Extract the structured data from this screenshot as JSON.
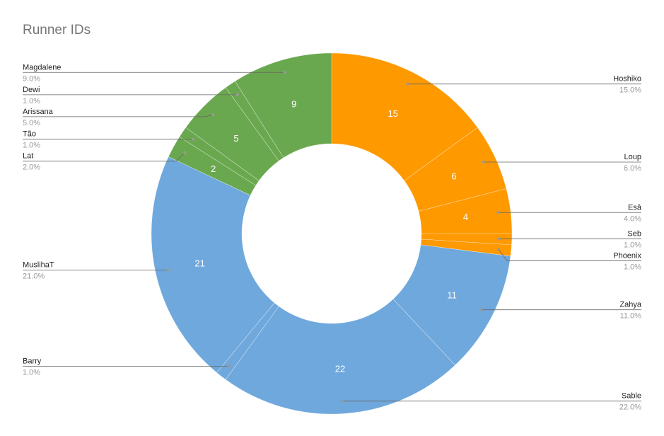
{
  "chart_data": {
    "type": "pie",
    "title": "Runner IDs",
    "subtype": "donut",
    "legend": "none",
    "colors": {
      "orange": "#FF9900",
      "blue": "#6FA8DC",
      "green": "#6AA84F"
    },
    "slices": [
      {
        "label": "Hoshiko",
        "value": 15,
        "percent": "15.0%",
        "color": "#FF9900",
        "side": "right"
      },
      {
        "label": "Loup",
        "value": 6,
        "percent": "6.0%",
        "color": "#FF9900",
        "side": "right"
      },
      {
        "label": "Esâ",
        "value": 4,
        "percent": "4.0%",
        "color": "#FF9900",
        "side": "right"
      },
      {
        "label": "Seb",
        "value": 1,
        "percent": "1.0%",
        "color": "#FF9900",
        "side": "right"
      },
      {
        "label": "Phoenix",
        "value": 1,
        "percent": "1.0%",
        "color": "#FF9900",
        "side": "right"
      },
      {
        "label": "Zahya",
        "value": 11,
        "percent": "11.0%",
        "color": "#6FA8DC",
        "side": "right"
      },
      {
        "label": "Sable",
        "value": 22,
        "percent": "22.0%",
        "color": "#6FA8DC",
        "side": "right"
      },
      {
        "label": "Barry",
        "value": 1,
        "percent": "1.0%",
        "color": "#6FA8DC",
        "side": "left"
      },
      {
        "label": "MuslihaT",
        "value": 21,
        "percent": "21.0%",
        "color": "#6FA8DC",
        "side": "left"
      },
      {
        "label": "Lat",
        "value": 2,
        "percent": "2.0%",
        "color": "#6AA84F",
        "side": "left"
      },
      {
        "label": "Tão",
        "value": 1,
        "percent": "1.0%",
        "color": "#6AA84F",
        "side": "left"
      },
      {
        "label": "Arissana",
        "value": 5,
        "percent": "5.0%",
        "color": "#6AA84F",
        "side": "left"
      },
      {
        "label": "Dewi",
        "value": 1,
        "percent": "1.0%",
        "color": "#6AA84F",
        "side": "left"
      },
      {
        "label": "Magdalene",
        "value": 9,
        "percent": "9.0%",
        "color": "#6AA84F",
        "side": "left"
      }
    ]
  }
}
